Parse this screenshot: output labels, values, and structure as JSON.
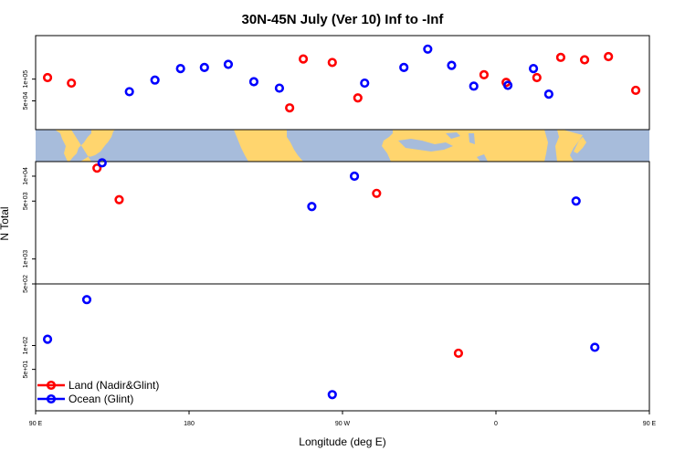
{
  "colors": {
    "land": "#ff0000",
    "ocean": "#0000ff",
    "map_land": "#ffd56e",
    "map_ocean": "#a7bcdb"
  },
  "chart_data": {
    "type": "scatter",
    "title": "30N-45N July (Ver 10)   Inf to -Inf",
    "xlabel": "Longitude (deg E)",
    "ylabel": "N Total",
    "xlim": [
      90,
      450
    ],
    "x_ticks": [
      {
        "value": 90,
        "label": "90 E"
      },
      {
        "value": 180,
        "label": "180"
      },
      {
        "value": 270,
        "label": "90 W"
      },
      {
        "value": 360,
        "label": "0"
      },
      {
        "value": 450,
        "label": "90 E"
      },
      {
        "value": 540,
        "label": "180"
      }
    ],
    "y_panels": [
      {
        "name": "upper",
        "ylim": [
          20000,
          400000
        ],
        "ticks": [
          {
            "value": 50000,
            "label": "5e+04"
          },
          {
            "value": 100000,
            "label": "1e+05"
          }
        ]
      },
      {
        "name": "middle",
        "ylim": [
          500,
          15000
        ],
        "ticks": [
          {
            "value": 500,
            "label": "5e+02"
          },
          {
            "value": 1000,
            "label": "1e+03"
          },
          {
            "value": 5000,
            "label": "5e+03"
          },
          {
            "value": 10000,
            "label": "1e+04"
          }
        ]
      },
      {
        "name": "lower",
        "ylim": [
          15,
          600
        ],
        "ticks": [
          {
            "value": 50,
            "label": "5e+01"
          },
          {
            "value": 100,
            "label": "1e+02"
          }
        ]
      }
    ],
    "series": [
      {
        "name": "Land (Nadir&Glint)",
        "color": "#ff0000",
        "points": [
          {
            "lon": 97,
            "panel": "upper",
            "value": 105000
          },
          {
            "lon": 111,
            "panel": "upper",
            "value": 88000
          },
          {
            "lon": 126,
            "panel": "middle",
            "value": 12500
          },
          {
            "lon": 139,
            "panel": "middle",
            "value": 5200
          },
          {
            "lon": 239,
            "panel": "upper",
            "value": 40000
          },
          {
            "lon": 247,
            "panel": "upper",
            "value": 190000
          },
          {
            "lon": 264,
            "panel": "upper",
            "value": 170000
          },
          {
            "lon": 279,
            "panel": "upper",
            "value": 55000
          },
          {
            "lon": 290,
            "panel": "middle",
            "value": 6200
          },
          {
            "lon": 338,
            "panel": "lower",
            "value": 80
          },
          {
            "lon": 353,
            "panel": "upper",
            "value": 115000
          },
          {
            "lon": 366,
            "panel": "upper",
            "value": 90000
          },
          {
            "lon": 384,
            "panel": "upper",
            "value": 105000
          },
          {
            "lon": 398,
            "panel": "upper",
            "value": 200000
          },
          {
            "lon": 412,
            "panel": "upper",
            "value": 185000
          },
          {
            "lon": 426,
            "panel": "upper",
            "value": 205000
          },
          {
            "lon": 442,
            "panel": "upper",
            "value": 70000
          },
          {
            "lon": 457,
            "panel": "upper",
            "value": 105000
          },
          {
            "lon": 471,
            "panel": "upper",
            "value": 88000
          },
          {
            "lon": 486,
            "panel": "middle",
            "value": 12500
          },
          {
            "lon": 499,
            "panel": "middle",
            "value": 5200
          }
        ]
      },
      {
        "name": "Ocean (Glint)",
        "color": "#0000ff",
        "points": [
          {
            "lon": 97,
            "panel": "lower",
            "value": 120
          },
          {
            "lon": 120,
            "panel": "lower",
            "value": 380
          },
          {
            "lon": 129,
            "panel": "middle",
            "value": 14500
          },
          {
            "lon": 145,
            "panel": "upper",
            "value": 67000
          },
          {
            "lon": 160,
            "panel": "upper",
            "value": 97000
          },
          {
            "lon": 175,
            "panel": "upper",
            "value": 140000
          },
          {
            "lon": 189,
            "panel": "upper",
            "value": 145000
          },
          {
            "lon": 203,
            "panel": "upper",
            "value": 160000
          },
          {
            "lon": 218,
            "panel": "upper",
            "value": 92000
          },
          {
            "lon": 233,
            "panel": "upper",
            "value": 75000
          },
          {
            "lon": 252,
            "panel": "middle",
            "value": 4300
          },
          {
            "lon": 264,
            "panel": "lower",
            "value": 24
          },
          {
            "lon": 277,
            "panel": "middle",
            "value": 10000
          },
          {
            "lon": 283,
            "panel": "upper",
            "value": 88000
          },
          {
            "lon": 306,
            "panel": "upper",
            "value": 145000
          },
          {
            "lon": 320,
            "panel": "upper",
            "value": 260000
          },
          {
            "lon": 334,
            "panel": "upper",
            "value": 155000
          },
          {
            "lon": 347,
            "panel": "upper",
            "value": 80000
          },
          {
            "lon": 367,
            "panel": "upper",
            "value": 82000
          },
          {
            "lon": 382,
            "panel": "upper",
            "value": 140000
          },
          {
            "lon": 391,
            "panel": "upper",
            "value": 62000
          },
          {
            "lon": 407,
            "panel": "middle",
            "value": 5000
          },
          {
            "lon": 418,
            "panel": "lower",
            "value": 95
          },
          {
            "lon": 457,
            "panel": "lower",
            "value": 120
          },
          {
            "lon": 480,
            "panel": "lower",
            "value": 380
          },
          {
            "lon": 489,
            "panel": "middle",
            "value": 14500
          },
          {
            "lon": 505,
            "panel": "upper",
            "value": 67000
          },
          {
            "lon": 520,
            "panel": "upper",
            "value": 97000
          },
          {
            "lon": 535,
            "panel": "upper",
            "value": 140000
          }
        ]
      }
    ],
    "legend": {
      "position": "bottom-left",
      "entries": [
        "Land (Nadir&Glint)",
        "Ocean (Glint)"
      ]
    },
    "grid": false
  }
}
